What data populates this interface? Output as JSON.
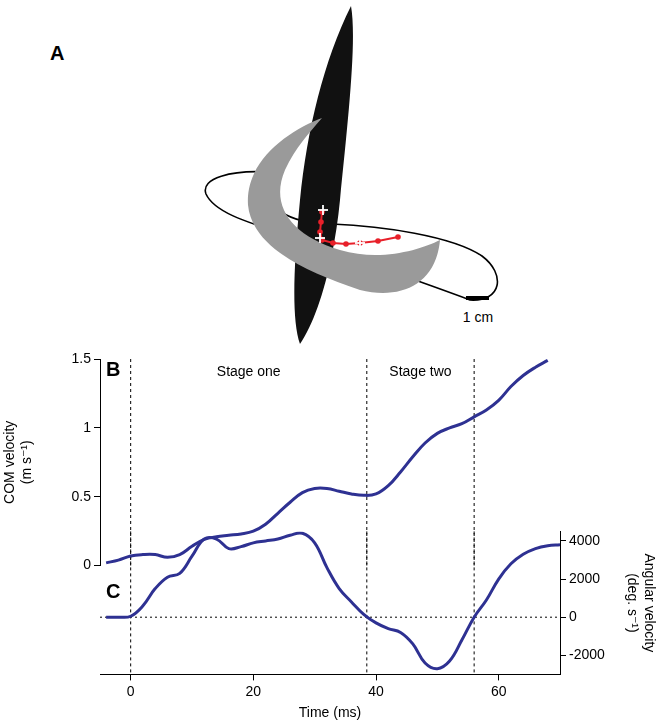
{
  "diagram": {
    "panel": "A",
    "scale_bar": "1 cm"
  },
  "stages": [
    {
      "label": "Stage one",
      "start": 0,
      "end": 38.5
    },
    {
      "label": "Stage two",
      "start": 38.5,
      "end": 56
    }
  ],
  "chart_data": [
    {
      "panel": "B",
      "type": "line",
      "y_label": [
        "COM velocity",
        "(m s⁻¹)"
      ],
      "x": [
        -4,
        -2,
        0,
        2,
        4,
        6,
        8,
        10,
        12,
        14,
        16,
        18,
        20,
        22,
        24,
        26,
        28,
        30,
        32,
        34,
        36,
        38,
        40,
        42,
        44,
        46,
        48,
        50,
        52,
        54,
        56,
        58,
        60,
        62,
        64,
        66,
        68
      ],
      "values": [
        0.02,
        0.04,
        0.07,
        0.08,
        0.08,
        0.06,
        0.08,
        0.14,
        0.19,
        0.21,
        0.22,
        0.23,
        0.25,
        0.3,
        0.38,
        0.46,
        0.53,
        0.56,
        0.56,
        0.54,
        0.52,
        0.51,
        0.52,
        0.58,
        0.68,
        0.79,
        0.89,
        0.96,
        1.0,
        1.03,
        1.08,
        1.13,
        1.2,
        1.3,
        1.38,
        1.44,
        1.49
      ],
      "color": "#2e3192",
      "xlim": [
        -5,
        70
      ],
      "ylim": [
        0,
        1.5
      ],
      "yticks": [
        0,
        0.5,
        1,
        1.5
      ],
      "grid": false,
      "tick_labels": "y"
    },
    {
      "panel": "C",
      "type": "line",
      "x_label": "Time (ms)",
      "y_label": [
        "Angular velocity",
        "(deg. s⁻¹)"
      ],
      "x": [
        -4,
        -2,
        0,
        2,
        4,
        6,
        8,
        10,
        12,
        14,
        16,
        18,
        20,
        22,
        24,
        26,
        28,
        30,
        32,
        34,
        36,
        38,
        40,
        42,
        44,
        46,
        48,
        50,
        52,
        54,
        56,
        58,
        60,
        62,
        64,
        66,
        68,
        70
      ],
      "values": [
        0,
        0,
        50,
        600,
        1500,
        2100,
        2300,
        3200,
        4100,
        4100,
        3600,
        3700,
        3900,
        4000,
        4100,
        4300,
        4400,
        3900,
        2600,
        1500,
        800,
        150,
        -300,
        -600,
        -800,
        -1400,
        -2400,
        -2700,
        -2300,
        -1200,
        0,
        900,
        2000,
        2800,
        3300,
        3600,
        3750,
        3800
      ],
      "color": "#2e3192",
      "axis": "y2",
      "xlim": [
        -5,
        70
      ],
      "xticks": [
        0,
        20,
        40,
        60
      ],
      "y2lim": [
        -3000,
        4500
      ],
      "y2ticks": [
        -2000,
        0,
        2000,
        4000
      ],
      "zero_line": 0,
      "grid": false
    }
  ]
}
